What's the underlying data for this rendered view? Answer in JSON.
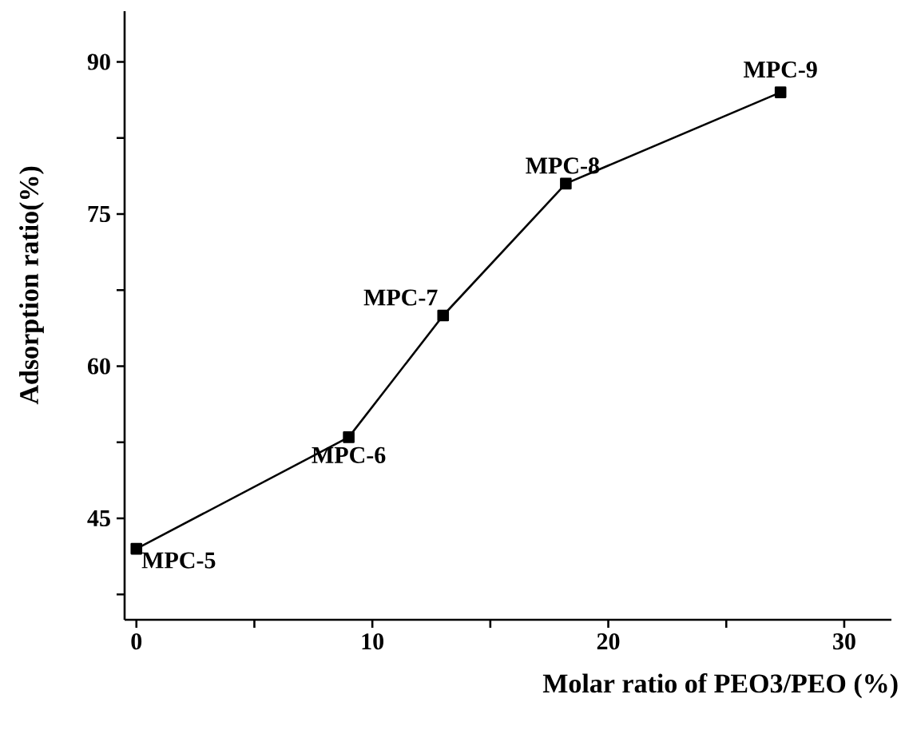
{
  "chart_data": {
    "type": "line",
    "xlabel": "Molar ratio of PEO3/PEO (%)",
    "ylabel": "Adsorption ratio(%)",
    "x": [
      0,
      9,
      13,
      18.2,
      27.3
    ],
    "series": [
      {
        "color": "#000000",
        "values": [
          42,
          53,
          65,
          78,
          87
        ]
      }
    ],
    "marker": "square",
    "line_style": "solid",
    "xlim": [
      -0.5,
      32
    ],
    "ylim": [
      35,
      95
    ],
    "xticks": [
      0,
      {
        "value": 5,
        "label": null
      },
      10,
      {
        "value": 15,
        "label": null
      },
      20,
      {
        "value": 25,
        "label": null
      },
      30
    ],
    "yticks": [
      {
        "value": 37.5,
        "label": null
      },
      45,
      {
        "value": 52.5,
        "label": null
      },
      60,
      {
        "value": 67.5,
        "label": null
      },
      75,
      {
        "value": 82.5,
        "label": null
      },
      90
    ],
    "annotations": [
      {
        "text": "MPC-5",
        "x": 0,
        "y": 42
      },
      {
        "text": "MPC-6",
        "x": 9,
        "y": 53
      },
      {
        "text": "MPC-7",
        "x": 13,
        "y": 65
      },
      {
        "text": "MPC-8",
        "x": 18.2,
        "y": 78
      },
      {
        "text": "MPC-9",
        "x": 27.3,
        "y": 87
      }
    ]
  }
}
